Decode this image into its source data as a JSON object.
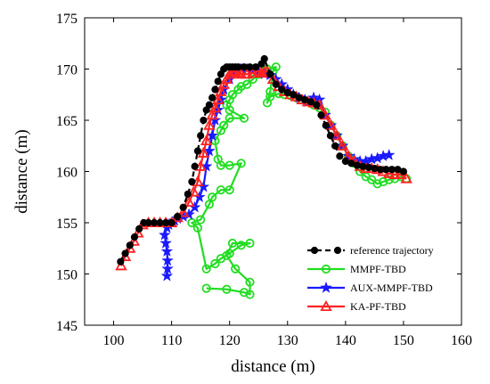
{
  "chart_data": {
    "type": "line",
    "xlabel": "distance (m)",
    "ylabel": "distance (m)",
    "xlim": [
      95,
      160
    ],
    "ylim": [
      145,
      175
    ],
    "xticks": [
      100,
      110,
      120,
      130,
      140,
      150,
      160
    ],
    "yticks": [
      145,
      150,
      155,
      160,
      165,
      170,
      175
    ],
    "grid": false,
    "legend_position": "bottom-right",
    "series": [
      {
        "name": "reference trajectory",
        "color": "#000000",
        "dash": true,
        "marker": "circle-filled",
        "x": [
          101.2,
          102.0,
          102.8,
          103.6,
          104.4,
          105.2,
          106.0,
          107.0,
          108.0,
          109.0,
          110.0,
          111.0,
          112.0,
          112.8,
          113.5,
          114.0,
          114.5,
          115.0,
          115.5,
          116.0,
          116.5,
          117.0,
          117.5,
          118.0,
          118.5,
          119.0,
          119.5,
          120.0,
          120.5,
          121.0,
          121.5,
          122.5,
          123.5,
          124.5,
          125.5,
          126.0,
          127.0,
          128.0,
          129.0,
          130.0,
          131.0,
          132.0,
          133.0,
          134.0,
          135.0,
          135.8,
          136.6,
          137.4,
          138.2,
          139.0,
          140.0,
          141.0,
          142.0,
          143.0,
          144.0,
          145.0,
          146.0,
          147.0,
          148.0,
          149.0,
          150.0
        ],
        "y": [
          151.2,
          152.0,
          152.8,
          153.6,
          154.4,
          155.0,
          155.0,
          155.0,
          155.0,
          155.0,
          155.0,
          155.6,
          156.5,
          157.8,
          159.0,
          160.5,
          162.0,
          163.5,
          165.0,
          166.0,
          166.5,
          167.2,
          168.0,
          168.8,
          169.5,
          170.0,
          170.2,
          170.2,
          170.2,
          170.2,
          170.2,
          170.2,
          170.2,
          170.2,
          170.5,
          171.0,
          169.5,
          168.5,
          168.0,
          167.7,
          167.5,
          167.2,
          167.0,
          166.8,
          166.5,
          165.5,
          164.5,
          163.5,
          162.5,
          161.5,
          161.0,
          160.8,
          160.6,
          160.5,
          160.4,
          160.3,
          160.2,
          160.2,
          160.2,
          160.2,
          160.0
        ]
      },
      {
        "name": "MMPF-TBD",
        "color": "#22dd22",
        "dash": false,
        "marker": "circle-open",
        "x": [
          116.0,
          119.5,
          122.5,
          123.5,
          123.5,
          121.0,
          119.5,
          120.5,
          123.5,
          122.0,
          120.0,
          118.5,
          117.5,
          116.0,
          114.5,
          113.5,
          115.0,
          116.5,
          117.0,
          118.5,
          120.0,
          122.0,
          120.0,
          118.5,
          118.0,
          117.5,
          118.5,
          119.0,
          120.0,
          122.5,
          120.0,
          119.5,
          120.0,
          120.5,
          121.5,
          122.0,
          123.0,
          124.0,
          125.0,
          126.0,
          126.5,
          128.0,
          127.5,
          127.0,
          126.5,
          127.0,
          128.5,
          129.5,
          130.5,
          131.5,
          132.5,
          133.5,
          134.5,
          135.5,
          136.5,
          137.5,
          138.5,
          139.5,
          140.5,
          141.5,
          142.5,
          143.5,
          144.5,
          145.5,
          146.5,
          147.5,
          148.5,
          149.5,
          150.5
        ],
        "y": [
          148.6,
          148.5,
          148.2,
          148.0,
          149.2,
          150.5,
          151.8,
          153.0,
          153.0,
          152.8,
          152.0,
          151.5,
          151.0,
          150.5,
          154.5,
          155.0,
          155.3,
          156.8,
          157.5,
          158.2,
          158.2,
          160.8,
          160.6,
          160.6,
          161.2,
          163.0,
          164.0,
          164.5,
          165.2,
          165.2,
          166.0,
          166.5,
          167.0,
          167.5,
          168.0,
          168.3,
          168.5,
          169.0,
          169.5,
          169.8,
          170.0,
          170.2,
          169.8,
          167.8,
          166.7,
          167.3,
          167.6,
          167.5,
          167.4,
          167.2,
          167.0,
          166.8,
          166.5,
          166.2,
          165.8,
          164.5,
          163.5,
          162.5,
          161.5,
          160.8,
          160.0,
          159.5,
          159.2,
          158.8,
          159.0,
          159.2,
          159.3,
          159.5,
          159.3
        ]
      },
      {
        "name": "AUX-MMPF-TBD",
        "color": "#1a1aff",
        "dash": false,
        "marker": "star",
        "x": [
          109.2,
          109.3,
          109.3,
          109.2,
          109.0,
          108.8,
          109.2,
          109.5,
          110.0,
          110.5,
          111.0,
          112.0,
          113.0,
          114.0,
          114.8,
          115.5,
          116.0,
          116.5,
          117.0,
          117.5,
          118.0,
          118.5,
          119.0,
          120.0,
          121.0,
          122.0,
          123.0,
          124.0,
          125.0,
          126.0,
          127.0,
          128.0,
          129.0,
          130.0,
          131.0,
          132.0,
          133.0,
          133.5,
          134.5,
          135.5,
          136.5,
          137.5,
          138.5,
          139.5,
          140.5,
          141.5,
          142.5,
          143.5,
          144.5,
          145.5,
          146.5,
          147.5
        ],
        "y": [
          149.8,
          150.5,
          151.3,
          152.2,
          153.0,
          153.8,
          154.5,
          154.8,
          155.0,
          155.2,
          155.4,
          155.6,
          155.8,
          156.5,
          157.5,
          158.5,
          160.5,
          162.0,
          163.5,
          165.0,
          166.0,
          167.0,
          168.0,
          169.0,
          169.8,
          170.0,
          170.0,
          169.8,
          169.6,
          169.5,
          169.4,
          169.0,
          168.5,
          168.0,
          167.5,
          167.2,
          167.0,
          166.8,
          167.2,
          167.0,
          165.5,
          164.5,
          163.5,
          162.5,
          161.5,
          161.2,
          161.0,
          161.0,
          161.2,
          161.3,
          161.5,
          161.6
        ]
      },
      {
        "name": "KA-PF-TBD",
        "color": "#ff2222",
        "dash": false,
        "marker": "triangle-open",
        "x": [
          101.3,
          102.0,
          102.8,
          103.5,
          104.2,
          105.0,
          106.0,
          107.0,
          108.0,
          109.0,
          110.0,
          111.0,
          112.0,
          113.0,
          113.8,
          114.5,
          115.0,
          115.5,
          116.0,
          116.5,
          117.0,
          117.5,
          118.0,
          118.5,
          119.0,
          119.5,
          120.0,
          120.5,
          121.0,
          121.5,
          122.0,
          123.0,
          124.0,
          125.0,
          125.5,
          126.0,
          126.5,
          127.5,
          128.5,
          129.5,
          130.5,
          131.5,
          132.5,
          133.5,
          134.5,
          135.5,
          136.5,
          137.5,
          138.5,
          139.5,
          140.5,
          141.5,
          142.5,
          143.5,
          144.5,
          145.5,
          146.5,
          147.5,
          148.5,
          149.5,
          150.5
        ],
        "y": [
          150.8,
          151.7,
          152.5,
          153.2,
          154.0,
          154.8,
          155.0,
          155.0,
          155.0,
          155.0,
          155.0,
          155.5,
          156.0,
          157.0,
          158.0,
          159.0,
          160.5,
          161.8,
          163.0,
          164.5,
          165.5,
          166.2,
          167.0,
          167.8,
          168.5,
          169.0,
          169.5,
          169.8,
          169.7,
          169.6,
          169.5,
          169.5,
          169.6,
          169.8,
          169.6,
          169.7,
          169.8,
          169.0,
          168.3,
          167.8,
          167.5,
          167.3,
          167.0,
          166.8,
          166.7,
          166.5,
          165.5,
          164.5,
          163.5,
          162.5,
          161.5,
          161.0,
          160.5,
          160.3,
          160.3,
          160.2,
          160.0,
          159.8,
          159.7,
          159.7,
          159.3
        ]
      }
    ]
  }
}
